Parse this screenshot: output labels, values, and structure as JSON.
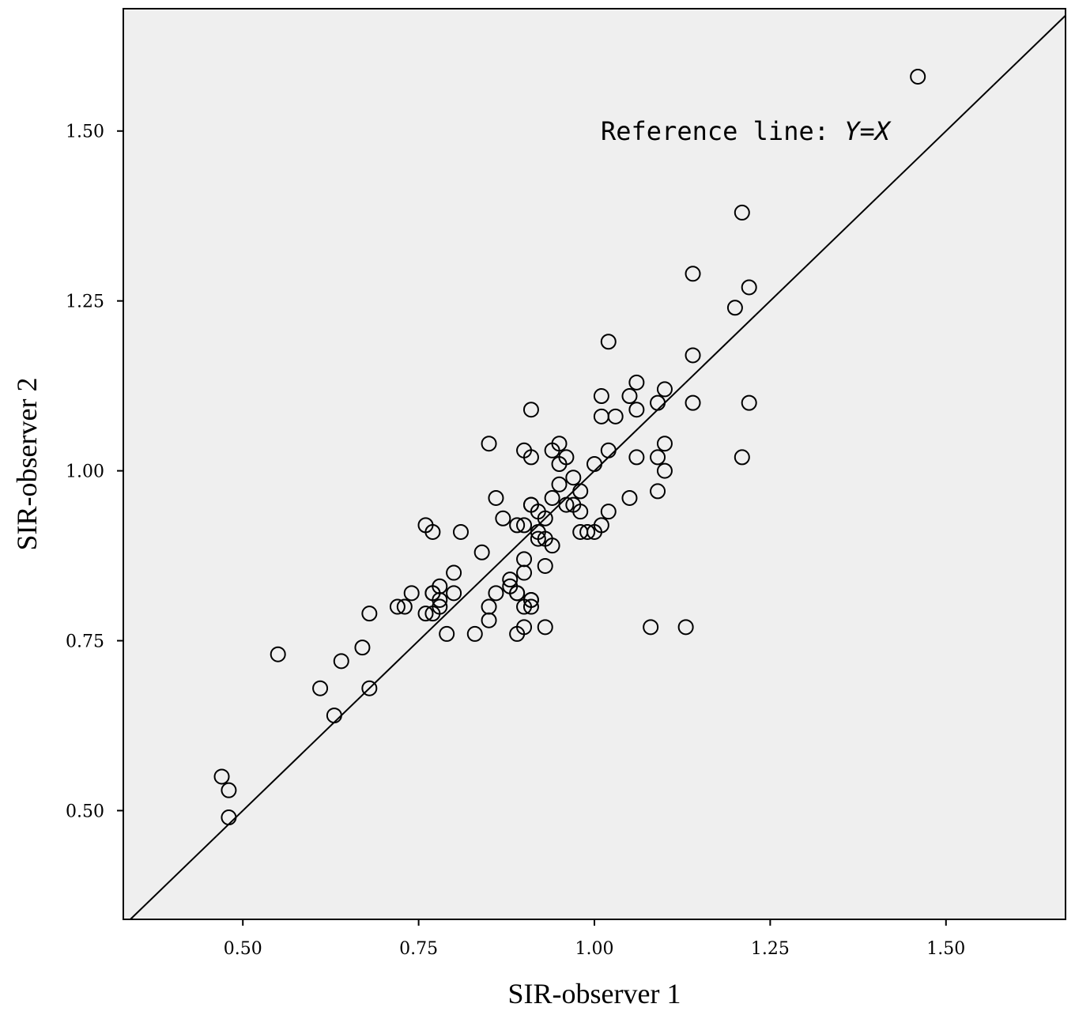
{
  "chart_data": {
    "type": "scatter",
    "title": "",
    "xlabel": "SIR-observer 1",
    "ylabel": "SIR-observer 2",
    "xlim": [
      0.33,
      1.67
    ],
    "ylim": [
      0.34,
      1.68
    ],
    "xticks": [
      0.5,
      0.75,
      1.0,
      1.25,
      1.5
    ],
    "xtick_labels": [
      "0.50",
      "0.75",
      "1.00",
      "1.25",
      "1.50"
    ],
    "yticks": [
      0.5,
      0.75,
      1.0,
      1.25,
      1.5
    ],
    "ytick_labels": [
      "0.50",
      "0.75",
      "1.00",
      "1.25",
      "1.50"
    ],
    "grid": false,
    "background": "#efefef",
    "marker": "open-circle",
    "reference_line": {
      "text_prefix": "Reference line: ",
      "text_equation": "Y=X"
    },
    "series": [
      {
        "x": [
          1.46,
          1.21,
          1.14,
          1.22,
          1.2,
          1.02,
          1.14,
          1.06,
          1.1,
          1.05,
          1.09,
          1.01,
          1.03,
          1.06,
          1.01,
          1.14,
          1.22,
          0.91,
          0.85,
          0.9,
          0.95,
          0.94,
          0.96,
          0.91,
          1.02,
          1.0,
          1.1,
          1.06,
          1.09,
          1.21,
          1.1,
          0.95,
          0.97,
          0.95,
          0.98,
          0.94,
          1.05,
          1.09,
          0.86,
          0.91,
          0.96,
          0.97,
          0.98,
          0.92,
          0.93,
          1.02,
          0.87,
          0.89,
          0.9,
          0.91,
          0.92,
          0.98,
          1.0,
          1.01,
          0.99,
          0.76,
          0.77,
          0.81,
          0.84,
          0.92,
          0.93,
          0.94,
          0.9,
          0.93,
          0.8,
          0.73,
          0.74,
          0.78,
          0.77,
          0.8,
          0.78,
          0.76,
          0.86,
          0.89,
          0.88,
          0.85,
          0.9,
          0.91,
          0.9,
          0.68,
          0.72,
          0.79,
          0.83,
          0.85,
          0.89,
          0.89,
          0.91,
          0.91,
          0.93,
          1.08,
          1.13,
          0.55,
          0.61,
          0.64,
          0.67,
          0.68,
          0.63,
          0.47,
          0.48,
          0.48,
          0.77,
          0.77,
          0.78,
          0.88,
          0.9
        ],
        "y": [
          1.58,
          1.38,
          1.29,
          1.27,
          1.24,
          1.19,
          1.17,
          1.13,
          1.12,
          1.11,
          1.1,
          1.11,
          1.08,
          1.09,
          1.08,
          1.1,
          1.1,
          1.09,
          1.04,
          1.03,
          1.04,
          1.03,
          1.02,
          1.02,
          1.03,
          1.01,
          1.04,
          1.02,
          1.02,
          1.02,
          1.0,
          1.01,
          0.99,
          0.98,
          0.97,
          0.96,
          0.96,
          0.97,
          0.96,
          0.95,
          0.95,
          0.95,
          0.94,
          0.94,
          0.93,
          0.94,
          0.93,
          0.92,
          0.92,
          0.95,
          0.91,
          0.91,
          0.91,
          0.92,
          0.91,
          0.92,
          0.91,
          0.91,
          0.88,
          0.9,
          0.9,
          0.89,
          0.87,
          0.86,
          0.85,
          0.8,
          0.82,
          0.83,
          0.82,
          0.82,
          0.8,
          0.79,
          0.82,
          0.82,
          0.84,
          0.8,
          0.85,
          0.81,
          0.8,
          0.79,
          0.8,
          0.76,
          0.76,
          0.78,
          0.76,
          0.82,
          0.8,
          0.81,
          0.77,
          0.77,
          0.77,
          0.73,
          0.68,
          0.72,
          0.74,
          0.68,
          0.64,
          0.55,
          0.53,
          0.49,
          0.79,
          0.82,
          0.81,
          0.83,
          0.77
        ]
      }
    ]
  }
}
